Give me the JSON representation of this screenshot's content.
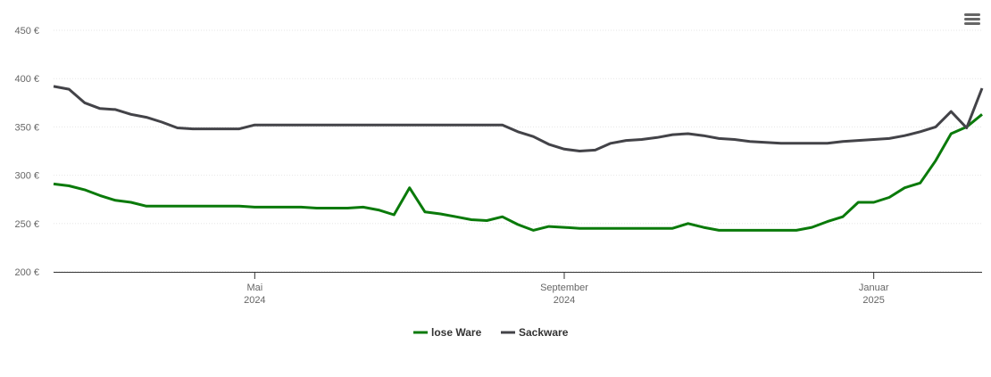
{
  "chart_data": {
    "type": "line",
    "categories": [
      null,
      null,
      null,
      null,
      null,
      null,
      null,
      null,
      null,
      null,
      null,
      null,
      null,
      "Mai 2024",
      null,
      null,
      null,
      null,
      null,
      null,
      null,
      null,
      null,
      null,
      null,
      null,
      null,
      null,
      null,
      null,
      null,
      null,
      null,
      "September 2024",
      null,
      null,
      null,
      null,
      null,
      null,
      null,
      null,
      null,
      null,
      null,
      null,
      null,
      null,
      null,
      null,
      null,
      null,
      null,
      "Januar 2025",
      null,
      null,
      null,
      null,
      null,
      null,
      null
    ],
    "series": [
      {
        "name": "lose Ware",
        "color": "#0a7a0a",
        "values": [
          291,
          289,
          285,
          279,
          274,
          272,
          268,
          268,
          268,
          268,
          268,
          268,
          268,
          267,
          267,
          267,
          267,
          266,
          266,
          266,
          267,
          264,
          259,
          287,
          262,
          260,
          257,
          254,
          253,
          257,
          249,
          243,
          247,
          246,
          245,
          245,
          245,
          245,
          245,
          245,
          245,
          250,
          246,
          243,
          243,
          243,
          243,
          243,
          243,
          246,
          252,
          257,
          272,
          272,
          277,
          287,
          292,
          315,
          343,
          350,
          363
        ]
      },
      {
        "name": "Sackware",
        "color": "#434348",
        "values": [
          392,
          389,
          375,
          369,
          368,
          363,
          360,
          355,
          349,
          348,
          348,
          348,
          348,
          352,
          352,
          352,
          352,
          352,
          352,
          352,
          352,
          352,
          352,
          352,
          352,
          352,
          352,
          352,
          352,
          352,
          345,
          340,
          332,
          327,
          325,
          326,
          333,
          336,
          337,
          339,
          342,
          343,
          341,
          338,
          337,
          335,
          334,
          333,
          333,
          333,
          333,
          335,
          336,
          337,
          338,
          341,
          345,
          350,
          366,
          349,
          390
        ]
      }
    ],
    "ylim": [
      200,
      450
    ],
    "yticks": [
      {
        "value": 200,
        "label": "200 €"
      },
      {
        "value": 250,
        "label": "250 €"
      },
      {
        "value": 300,
        "label": "300 €"
      },
      {
        "value": 350,
        "label": "350 €"
      },
      {
        "value": 400,
        "label": "400 €"
      },
      {
        "value": 450,
        "label": "450 €"
      }
    ],
    "grid": true
  }
}
